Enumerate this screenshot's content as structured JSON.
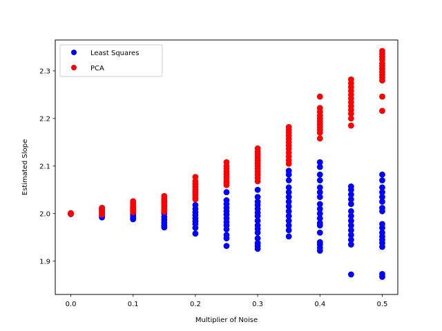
{
  "chart_data": {
    "type": "scatter",
    "title": "",
    "xlabel": "Multiplier of Noise",
    "ylabel": "Estimated Slope",
    "xlim": [
      -0.025,
      0.525
    ],
    "ylim": [
      1.83,
      2.365
    ],
    "xticks": [
      0.0,
      0.1,
      0.2,
      0.3,
      0.4,
      0.5
    ],
    "xtick_labels": [
      "0.0",
      "0.1",
      "0.2",
      "0.3",
      "0.4",
      "0.5"
    ],
    "yticks": [
      1.9,
      2.0,
      2.1,
      2.2,
      2.3
    ],
    "ytick_labels": [
      "1.9",
      "2.0",
      "2.1",
      "2.2",
      "2.3"
    ],
    "grid": false,
    "legend": {
      "position": "upper left"
    },
    "series": [
      {
        "name": "Least Squares",
        "color": "#0000ff",
        "points": [
          [
            0.0,
            2.0
          ],
          [
            0.0,
            2.0
          ],
          [
            0.0,
            1.999
          ],
          [
            0.05,
            2.012
          ],
          [
            0.05,
            2.009
          ],
          [
            0.05,
            2.006
          ],
          [
            0.05,
            2.003
          ],
          [
            0.05,
            2.0
          ],
          [
            0.05,
            1.997
          ],
          [
            0.05,
            1.995
          ],
          [
            0.05,
            1.992
          ],
          [
            0.1,
            2.014
          ],
          [
            0.1,
            2.01
          ],
          [
            0.1,
            2.006
          ],
          [
            0.1,
            2.002
          ],
          [
            0.1,
            1.998
          ],
          [
            0.1,
            1.994
          ],
          [
            0.1,
            1.99
          ],
          [
            0.1,
            1.988
          ],
          [
            0.15,
            2.025
          ],
          [
            0.15,
            2.016
          ],
          [
            0.15,
            2.008
          ],
          [
            0.15,
            2.0
          ],
          [
            0.15,
            1.993
          ],
          [
            0.15,
            1.987
          ],
          [
            0.15,
            1.981
          ],
          [
            0.15,
            1.975
          ],
          [
            0.15,
            1.971
          ],
          [
            0.2,
            2.018
          ],
          [
            0.2,
            2.01
          ],
          [
            0.2,
            2.003
          ],
          [
            0.2,
            1.997
          ],
          [
            0.2,
            1.99
          ],
          [
            0.2,
            1.984
          ],
          [
            0.2,
            1.978
          ],
          [
            0.2,
            1.97
          ],
          [
            0.2,
            1.958
          ],
          [
            0.25,
            2.045
          ],
          [
            0.25,
            2.028
          ],
          [
            0.25,
            2.02
          ],
          [
            0.25,
            2.012
          ],
          [
            0.25,
            2.005
          ],
          [
            0.25,
            1.998
          ],
          [
            0.25,
            1.99
          ],
          [
            0.25,
            1.982
          ],
          [
            0.25,
            1.975
          ],
          [
            0.25,
            1.967
          ],
          [
            0.25,
            1.955
          ],
          [
            0.25,
            1.948
          ],
          [
            0.25,
            1.932
          ],
          [
            0.3,
            2.05
          ],
          [
            0.3,
            2.035
          ],
          [
            0.3,
            2.025
          ],
          [
            0.3,
            2.018
          ],
          [
            0.3,
            2.01
          ],
          [
            0.3,
            2.002
          ],
          [
            0.3,
            1.995
          ],
          [
            0.3,
            1.985
          ],
          [
            0.3,
            1.975
          ],
          [
            0.3,
            1.968
          ],
          [
            0.3,
            1.96
          ],
          [
            0.3,
            1.948
          ],
          [
            0.3,
            1.938
          ],
          [
            0.3,
            1.932
          ],
          [
            0.3,
            1.926
          ],
          [
            0.35,
            2.09
          ],
          [
            0.35,
            2.082
          ],
          [
            0.35,
            2.07
          ],
          [
            0.35,
            2.055
          ],
          [
            0.35,
            2.045
          ],
          [
            0.35,
            2.035
          ],
          [
            0.35,
            2.025
          ],
          [
            0.35,
            2.015
          ],
          [
            0.35,
            2.005
          ],
          [
            0.35,
            1.995
          ],
          [
            0.35,
            1.985
          ],
          [
            0.35,
            1.975
          ],
          [
            0.35,
            1.965
          ],
          [
            0.35,
            1.952
          ],
          [
            0.4,
            2.108
          ],
          [
            0.4,
            2.098
          ],
          [
            0.4,
            2.082
          ],
          [
            0.4,
            2.07
          ],
          [
            0.4,
            2.055
          ],
          [
            0.4,
            2.045
          ],
          [
            0.4,
            2.035
          ],
          [
            0.4,
            2.02
          ],
          [
            0.4,
            2.01
          ],
          [
            0.4,
            2.0
          ],
          [
            0.4,
            1.99
          ],
          [
            0.4,
            1.98
          ],
          [
            0.4,
            1.975
          ],
          [
            0.4,
            1.96
          ],
          [
            0.4,
            1.94
          ],
          [
            0.4,
            1.935
          ],
          [
            0.4,
            1.928
          ],
          [
            0.4,
            1.922
          ],
          [
            0.45,
            2.057
          ],
          [
            0.45,
            2.05
          ],
          [
            0.45,
            2.04
          ],
          [
            0.45,
            2.03
          ],
          [
            0.45,
            2.02
          ],
          [
            0.45,
            2.005
          ],
          [
            0.45,
            1.995
          ],
          [
            0.45,
            1.985
          ],
          [
            0.45,
            1.975
          ],
          [
            0.45,
            1.965
          ],
          [
            0.45,
            1.955
          ],
          [
            0.45,
            1.945
          ],
          [
            0.45,
            1.935
          ],
          [
            0.45,
            1.872
          ],
          [
            0.5,
            2.082
          ],
          [
            0.5,
            2.07
          ],
          [
            0.5,
            2.055
          ],
          [
            0.5,
            2.045
          ],
          [
            0.5,
            2.035
          ],
          [
            0.5,
            2.025
          ],
          [
            0.5,
            2.012
          ],
          [
            0.5,
            2.005
          ],
          [
            0.5,
            1.978
          ],
          [
            0.5,
            1.97
          ],
          [
            0.5,
            1.96
          ],
          [
            0.5,
            1.952
          ],
          [
            0.5,
            1.945
          ],
          [
            0.5,
            1.938
          ],
          [
            0.5,
            1.93
          ],
          [
            0.5,
            1.873
          ],
          [
            0.5,
            1.867
          ]
        ]
      },
      {
        "name": "PCA",
        "color": "#ff0000",
        "points": [
          [
            0.0,
            2.0
          ],
          [
            0.0,
            2.0
          ],
          [
            0.0,
            2.001
          ],
          [
            0.05,
            2.012
          ],
          [
            0.05,
            2.01
          ],
          [
            0.05,
            2.008
          ],
          [
            0.05,
            2.006
          ],
          [
            0.05,
            2.004
          ],
          [
            0.05,
            2.002
          ],
          [
            0.05,
            2.0
          ],
          [
            0.05,
            1.998
          ],
          [
            0.1,
            2.026
          ],
          [
            0.1,
            2.022
          ],
          [
            0.1,
            2.018
          ],
          [
            0.1,
            2.015
          ],
          [
            0.1,
            2.012
          ],
          [
            0.1,
            2.009
          ],
          [
            0.1,
            2.006
          ],
          [
            0.1,
            2.003
          ],
          [
            0.15,
            2.037
          ],
          [
            0.15,
            2.032
          ],
          [
            0.15,
            2.028
          ],
          [
            0.15,
            2.024
          ],
          [
            0.15,
            2.02
          ],
          [
            0.15,
            2.016
          ],
          [
            0.15,
            2.012
          ],
          [
            0.15,
            2.008
          ],
          [
            0.15,
            2.004
          ],
          [
            0.2,
            2.077
          ],
          [
            0.2,
            2.068
          ],
          [
            0.2,
            2.062
          ],
          [
            0.2,
            2.056
          ],
          [
            0.2,
            2.05
          ],
          [
            0.2,
            2.045
          ],
          [
            0.2,
            2.04
          ],
          [
            0.2,
            2.034
          ],
          [
            0.2,
            2.03
          ],
          [
            0.25,
            2.108
          ],
          [
            0.25,
            2.1
          ],
          [
            0.25,
            2.094
          ],
          [
            0.25,
            2.088
          ],
          [
            0.25,
            2.083
          ],
          [
            0.25,
            2.078
          ],
          [
            0.25,
            2.073
          ],
          [
            0.25,
            2.068
          ],
          [
            0.25,
            2.064
          ],
          [
            0.25,
            2.06
          ],
          [
            0.3,
            2.137
          ],
          [
            0.3,
            2.13
          ],
          [
            0.3,
            2.124
          ],
          [
            0.3,
            2.118
          ],
          [
            0.3,
            2.112
          ],
          [
            0.3,
            2.106
          ],
          [
            0.3,
            2.1
          ],
          [
            0.3,
            2.094
          ],
          [
            0.3,
            2.088
          ],
          [
            0.3,
            2.082
          ],
          [
            0.3,
            2.075
          ],
          [
            0.3,
            2.068
          ],
          [
            0.35,
            2.182
          ],
          [
            0.35,
            2.176
          ],
          [
            0.35,
            2.17
          ],
          [
            0.35,
            2.164
          ],
          [
            0.35,
            2.157
          ],
          [
            0.35,
            2.15
          ],
          [
            0.35,
            2.143
          ],
          [
            0.35,
            2.136
          ],
          [
            0.35,
            2.128
          ],
          [
            0.35,
            2.12
          ],
          [
            0.35,
            2.112
          ],
          [
            0.35,
            2.105
          ],
          [
            0.4,
            2.246
          ],
          [
            0.4,
            2.222
          ],
          [
            0.4,
            2.214
          ],
          [
            0.4,
            2.206
          ],
          [
            0.4,
            2.2
          ],
          [
            0.4,
            2.194
          ],
          [
            0.4,
            2.188
          ],
          [
            0.4,
            2.182
          ],
          [
            0.4,
            2.176
          ],
          [
            0.4,
            2.17
          ],
          [
            0.4,
            2.158
          ],
          [
            0.45,
            2.282
          ],
          [
            0.45,
            2.274
          ],
          [
            0.45,
            2.266
          ],
          [
            0.45,
            2.258
          ],
          [
            0.45,
            2.25
          ],
          [
            0.45,
            2.242
          ],
          [
            0.45,
            2.234
          ],
          [
            0.45,
            2.226
          ],
          [
            0.45,
            2.218
          ],
          [
            0.45,
            2.21
          ],
          [
            0.45,
            2.2
          ],
          [
            0.45,
            2.185
          ],
          [
            0.5,
            2.342
          ],
          [
            0.5,
            2.336
          ],
          [
            0.5,
            2.33
          ],
          [
            0.5,
            2.324
          ],
          [
            0.5,
            2.316
          ],
          [
            0.5,
            2.31
          ],
          [
            0.5,
            2.304
          ],
          [
            0.5,
            2.298
          ],
          [
            0.5,
            2.292
          ],
          [
            0.5,
            2.286
          ],
          [
            0.5,
            2.28
          ],
          [
            0.5,
            2.246
          ],
          [
            0.5,
            2.216
          ]
        ]
      }
    ]
  }
}
